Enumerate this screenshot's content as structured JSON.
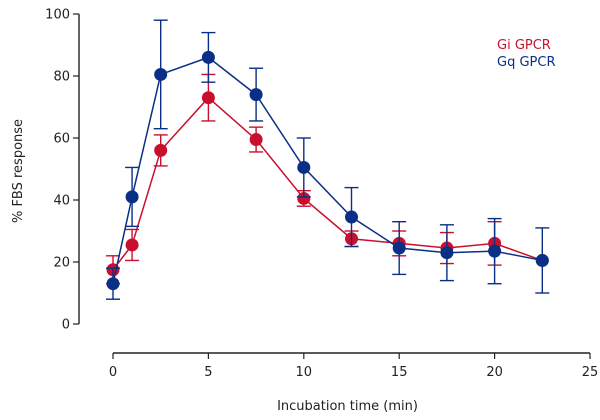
{
  "chart_data": {
    "type": "line",
    "title": "",
    "xlabel": "Incubation time (min)",
    "ylabel": "% FBS response",
    "xlim": [
      0,
      25
    ],
    "ylim": [
      0,
      100
    ],
    "xticks": [
      0,
      5,
      10,
      15,
      20,
      25
    ],
    "yticks": [
      0,
      20,
      40,
      60,
      80,
      100
    ],
    "grid": false,
    "legend_position": "top-right",
    "series": [
      {
        "name": "Gi GPCR",
        "color": "#c8102e",
        "x": [
          0,
          1,
          2.5,
          5,
          7.5,
          10,
          12.5,
          15,
          17.5,
          20,
          22.5
        ],
        "y": [
          17.5,
          25.5,
          56,
          73,
          59.5,
          40.5,
          27.5,
          26,
          24.5,
          26,
          20.5
        ],
        "err": [
          4.5,
          5,
          5,
          7.5,
          4,
          2.5,
          2.5,
          4,
          5,
          7,
          0
        ]
      },
      {
        "name": "Gq GPCR",
        "color": "#0a2f86",
        "x": [
          0,
          1,
          2.5,
          5,
          7.5,
          10,
          12.5,
          15,
          17.5,
          20,
          22.5
        ],
        "y": [
          13,
          41,
          80.5,
          86,
          74,
          50.5,
          34.5,
          24.5,
          23,
          23.5,
          20.5
        ],
        "err": [
          5,
          9.5,
          17.5,
          8,
          8.5,
          9.5,
          9.5,
          8.5,
          9,
          10.5,
          10.5
        ]
      }
    ]
  }
}
